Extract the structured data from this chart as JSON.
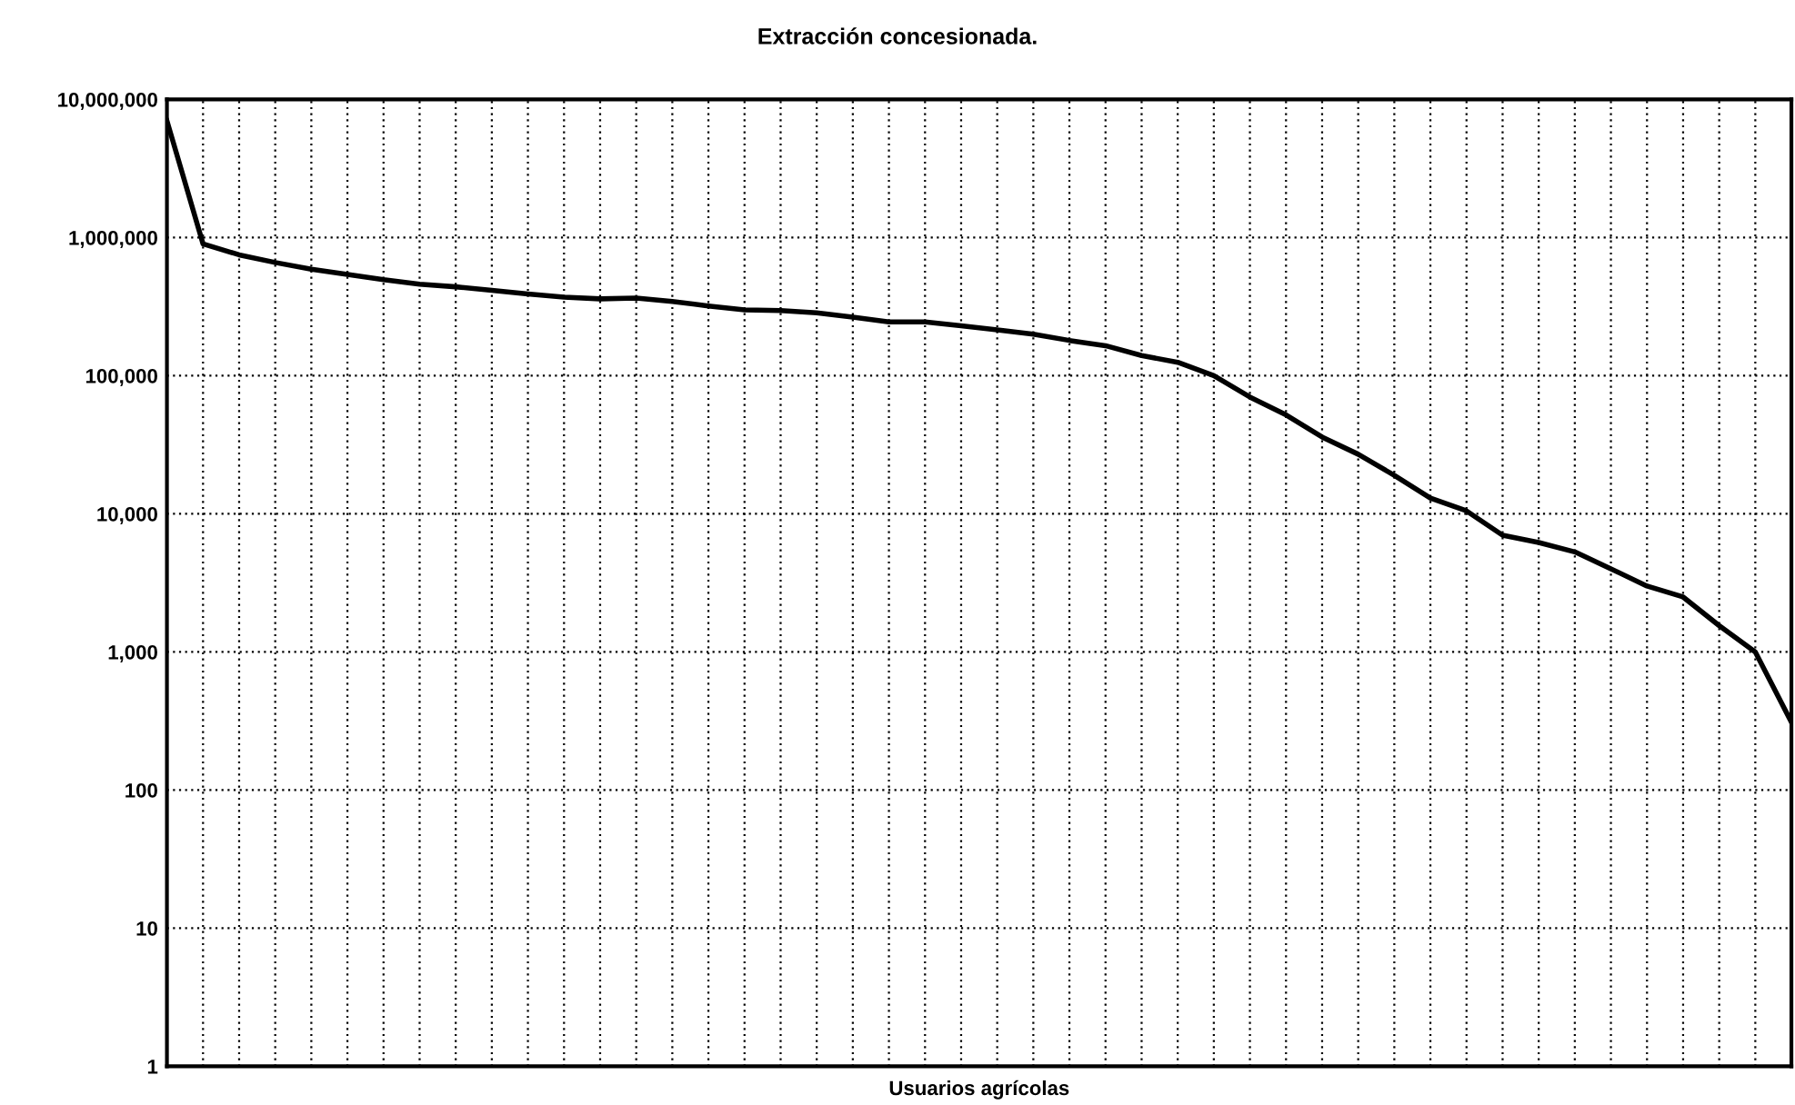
{
  "chart_data": {
    "type": "line",
    "title": "Extracción concesionada.",
    "xlabel": "Usuarios agrícolas",
    "categories": [
      null,
      null,
      null,
      null,
      null,
      null,
      null,
      null,
      null,
      null,
      null,
      null,
      null,
      null,
      null,
      null,
      null,
      null,
      null,
      null,
      null,
      null,
      null,
      null,
      null,
      null,
      null,
      null,
      null,
      null,
      null,
      null,
      null,
      null,
      null,
      null,
      null,
      null,
      null,
      null,
      null,
      null,
      null,
      null,
      null,
      null
    ],
    "series": [
      {
        "color": "#000000",
        "values": [
          7000000,
          900000,
          750000,
          660000,
          590000,
          540000,
          495000,
          460000,
          440000,
          415000,
          390000,
          370000,
          360000,
          365000,
          345000,
          320000,
          300000,
          296000,
          285000,
          265000,
          245000,
          245000,
          230000,
          215000,
          200000,
          180000,
          165000,
          140000,
          125000,
          100000,
          70000,
          52000,
          36000,
          27000,
          19000,
          13000,
          10500,
          7000,
          6200,
          5300,
          4000,
          3000,
          2500,
          1550,
          1000,
          310
        ]
      }
    ],
    "log": "y",
    "ylim": [
      1,
      10000000
    ],
    "yticks": [
      1,
      10,
      100,
      {
        "value": 1000,
        "label": "1,000"
      },
      {
        "value": 10000,
        "label": "10,000"
      },
      {
        "value": 100000,
        "label": "100,000"
      },
      {
        "value": 1000000,
        "label": "1,000,000"
      },
      {
        "value": 10000000,
        "label": "10,000,000"
      }
    ],
    "grid": true,
    "marker": "none",
    "line_style": "solid",
    "legend": false
  }
}
